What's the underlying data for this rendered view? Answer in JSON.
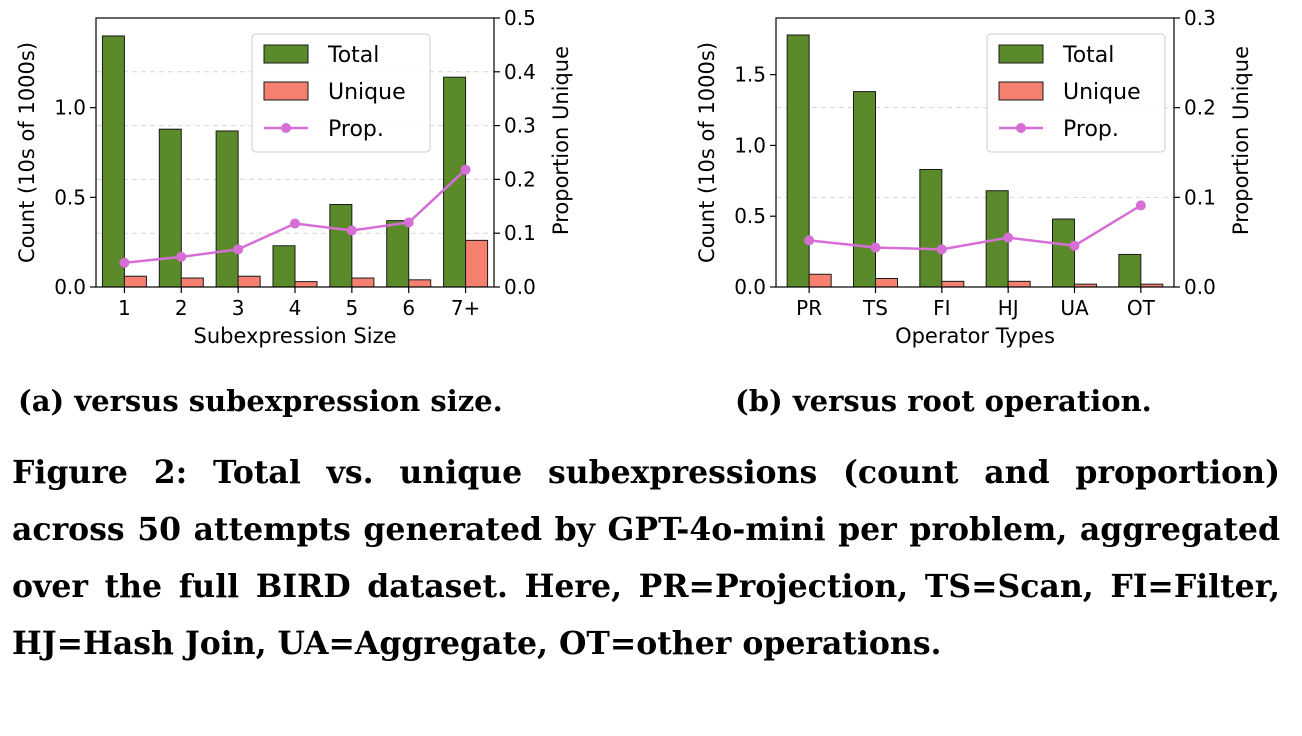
{
  "chart_data": [
    {
      "type": "bar",
      "categories": [
        "1",
        "2",
        "3",
        "4",
        "5",
        "6",
        "7+"
      ],
      "series": [
        {
          "name": "Total",
          "axis": "left",
          "values": [
            1.4,
            0.88,
            0.87,
            0.23,
            0.46,
            0.37,
            1.17
          ]
        },
        {
          "name": "Unique",
          "axis": "left",
          "values": [
            0.06,
            0.05,
            0.06,
            0.03,
            0.05,
            0.04,
            0.26
          ]
        },
        {
          "name": "Prop.",
          "axis": "right",
          "kind": "line",
          "values": [
            0.045,
            0.056,
            0.07,
            0.118,
            0.105,
            0.12,
            0.218
          ]
        }
      ],
      "xlabel": "Subexpression Size",
      "ylabel": "Count (10s of 1000s)",
      "ylabel_right": "Proportion Unique",
      "ylim": [
        0,
        1.5
      ],
      "ylim_right": [
        0,
        0.5
      ],
      "yticks": [
        "0.0",
        "0.5",
        "1.0"
      ],
      "yticks_right": [
        "0.0",
        "0.1",
        "0.2",
        "0.3",
        "0.4",
        "0.5"
      ],
      "grid": true,
      "legend": "top-right",
      "colors": {
        "Total": "#5b8a2b",
        "Unique": "#f58070",
        "Prop.": "#d66ed6"
      }
    },
    {
      "type": "bar",
      "categories": [
        "PR",
        "TS",
        "FI",
        "HJ",
        "UA",
        "OT"
      ],
      "series": [
        {
          "name": "Total",
          "axis": "left",
          "values": [
            1.78,
            1.38,
            0.83,
            0.68,
            0.48,
            0.23
          ]
        },
        {
          "name": "Unique",
          "axis": "left",
          "values": [
            0.09,
            0.06,
            0.04,
            0.04,
            0.02,
            0.02
          ]
        },
        {
          "name": "Prop.",
          "axis": "right",
          "kind": "line",
          "values": [
            0.052,
            0.044,
            0.042,
            0.055,
            0.046,
            0.091
          ]
        }
      ],
      "xlabel": "Operator Types",
      "ylabel": "Count (10s of 1000s)",
      "ylabel_right": "Proportion Unique",
      "ylim": [
        0,
        1.9
      ],
      "ylim_right": [
        0,
        0.3
      ],
      "yticks": [
        "0.0",
        "0.5",
        "1.0",
        "1.5"
      ],
      "yticks_right": [
        "0.0",
        "0.1",
        "0.2",
        "0.3"
      ],
      "grid": true,
      "legend": "top-right",
      "colors": {
        "Total": "#5b8a2b",
        "Unique": "#f58070",
        "Prop.": "#d66ed6"
      }
    }
  ],
  "subcaptions": {
    "a": "(a) versus subexpression size.",
    "b": "(b) versus root operation."
  },
  "caption": "Figure 2: Total vs. unique subexpressions (count and proportion) across 50 attempts generated by GPT-4o-mini per problem, aggregated over the full BIRD dataset. Here, PR=Projection, TS=Scan, FI=Filter, HJ=Hash Join, UA=Aggregate, OT=other operations."
}
